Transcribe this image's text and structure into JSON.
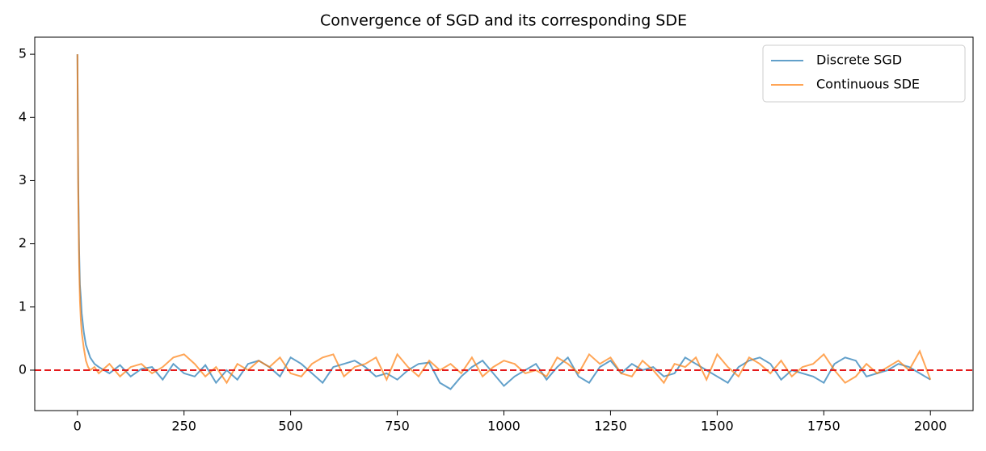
{
  "chart_data": {
    "type": "line",
    "title": "Convergence of SGD and its corresponding SDE",
    "x": [
      0,
      2,
      4,
      6,
      8,
      10,
      15,
      20,
      25,
      30,
      40,
      50,
      75,
      100,
      125,
      150,
      175,
      200,
      225,
      250,
      275,
      300,
      325,
      350,
      375,
      400,
      425,
      450,
      475,
      500,
      525,
      550,
      575,
      600,
      625,
      650,
      675,
      700,
      725,
      750,
      775,
      800,
      825,
      850,
      875,
      900,
      925,
      950,
      975,
      1000,
      1025,
      1050,
      1075,
      1100,
      1125,
      1150,
      1175,
      1200,
      1225,
      1250,
      1275,
      1300,
      1325,
      1350,
      1375,
      1400,
      1425,
      1450,
      1475,
      1500,
      1525,
      1550,
      1575,
      1600,
      1625,
      1650,
      1675,
      1700,
      1725,
      1750,
      1775,
      1800,
      1825,
      1850,
      1875,
      1900,
      1925,
      1950,
      1975,
      2000
    ],
    "series": [
      {
        "name": "Discrete SGD",
        "color": "#1f77b4",
        "values": [
          5,
          3.0,
          1.9,
          1.35,
          1.15,
          0.9,
          0.6,
          0.4,
          0.3,
          0.2,
          0.1,
          0.05,
          -0.05,
          0.08,
          -0.1,
          0.02,
          0.05,
          -0.15,
          0.1,
          -0.05,
          -0.1,
          0.08,
          -0.2,
          0.0,
          -0.15,
          0.1,
          0.15,
          0.05,
          -0.1,
          0.2,
          0.1,
          -0.05,
          -0.2,
          0.05,
          0.1,
          0.15,
          0.05,
          -0.1,
          -0.05,
          -0.15,
          0.0,
          0.1,
          0.12,
          -0.2,
          -0.3,
          -0.1,
          0.05,
          0.15,
          -0.05,
          -0.25,
          -0.1,
          0.0,
          0.1,
          -0.15,
          0.05,
          0.2,
          -0.1,
          -0.2,
          0.05,
          0.15,
          -0.05,
          0.1,
          0.0,
          0.05,
          -0.1,
          -0.05,
          0.2,
          0.1,
          0.0,
          -0.1,
          -0.2,
          0.05,
          0.15,
          0.2,
          0.1,
          -0.15,
          0.0,
          -0.05,
          -0.1,
          -0.2,
          0.1,
          0.2,
          0.15,
          -0.1,
          -0.05,
          0.0,
          0.1,
          0.05,
          -0.05,
          -0.15
        ]
      },
      {
        "name": "Continuous SDE",
        "color": "#ff7f0e",
        "values": [
          5,
          2.8,
          1.7,
          1.1,
          0.8,
          0.6,
          0.35,
          0.15,
          0.05,
          0.0,
          0.05,
          -0.05,
          0.1,
          -0.1,
          0.05,
          0.1,
          -0.05,
          0.05,
          0.2,
          0.25,
          0.1,
          -0.1,
          0.05,
          -0.2,
          0.1,
          0.0,
          0.15,
          0.05,
          0.2,
          -0.05,
          -0.1,
          0.1,
          0.2,
          0.25,
          -0.1,
          0.05,
          0.1,
          0.2,
          -0.15,
          0.25,
          0.05,
          -0.1,
          0.15,
          0.0,
          0.1,
          -0.05,
          0.2,
          -0.1,
          0.05,
          0.15,
          0.1,
          -0.05,
          0.0,
          -0.1,
          0.2,
          0.1,
          -0.05,
          0.25,
          0.1,
          0.2,
          -0.05,
          -0.1,
          0.15,
          0.0,
          -0.2,
          0.1,
          0.05,
          0.2,
          -0.15,
          0.25,
          0.05,
          -0.1,
          0.2,
          0.1,
          -0.05,
          0.15,
          -0.1,
          0.05,
          0.1,
          0.25,
          0.0,
          -0.2,
          -0.1,
          0.1,
          -0.05,
          0.05,
          0.15,
          0.0,
          0.3,
          -0.15
        ]
      }
    ],
    "hlines": [
      {
        "y": 0,
        "color": "#e41a1c",
        "style": "dashed"
      }
    ],
    "xlim": [
      -100,
      2100
    ],
    "ylim": [
      -0.64,
      5.27
    ],
    "xticks": [
      0,
      250,
      500,
      750,
      1000,
      1250,
      1500,
      1750,
      2000
    ],
    "yticks": [
      0,
      1,
      2,
      3,
      4,
      5
    ],
    "legend": "upper right",
    "grid": false
  }
}
